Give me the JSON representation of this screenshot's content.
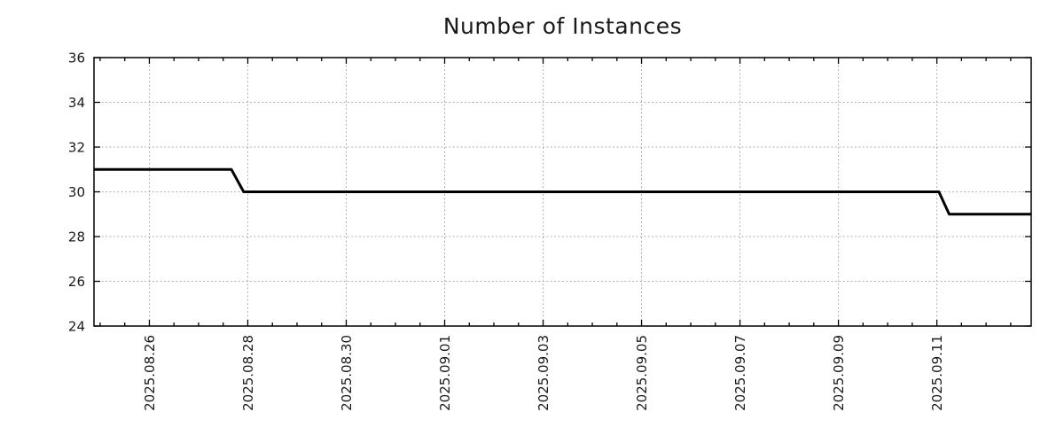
{
  "page": {
    "background": "#ffffff"
  },
  "chart_data": {
    "type": "line",
    "title": "Number of Instances",
    "x_axis": {
      "kind": "datetime",
      "min": "2025-08-24 21:00",
      "max": "2025-09-12 22:00",
      "major_ticks": [
        {
          "date": "2025-08-26",
          "label": "2025.08.26"
        },
        {
          "date": "2025-08-28",
          "label": "2025.08.28"
        },
        {
          "date": "2025-08-30",
          "label": "2025.08.30"
        },
        {
          "date": "2025-09-01",
          "label": "2025.09.01"
        },
        {
          "date": "2025-09-03",
          "label": "2025.09.03"
        },
        {
          "date": "2025-09-05",
          "label": "2025.09.05"
        },
        {
          "date": "2025-09-07",
          "label": "2025.09.07"
        },
        {
          "date": "2025-09-09",
          "label": "2025.09.09"
        },
        {
          "date": "2025-09-11",
          "label": "2025.09.11"
        }
      ],
      "minor_tick_interval_hours": 12,
      "tick_label_rotation_deg": -90
    },
    "y_axis": {
      "min": 24,
      "max": 36,
      "major_ticks": [
        {
          "value": 24,
          "label": "24"
        },
        {
          "value": 26,
          "label": "26"
        },
        {
          "value": 28,
          "label": "28"
        },
        {
          "value": 30,
          "label": "30"
        },
        {
          "value": 32,
          "label": "32"
        },
        {
          "value": 34,
          "label": "34"
        },
        {
          "value": 36,
          "label": "36"
        }
      ]
    },
    "series": [
      {
        "name": "Number of Instances",
        "color": "#000000",
        "line_width": 3,
        "points": [
          {
            "x": "2025-08-24 21:00",
            "y": 31
          },
          {
            "x": "2025-08-27 16:00",
            "y": 31
          },
          {
            "x": "2025-08-27 22:00",
            "y": 30
          },
          {
            "x": "2025-09-11 01:00",
            "y": 30
          },
          {
            "x": "2025-09-11 06:00",
            "y": 29
          },
          {
            "x": "2025-09-12 22:00",
            "y": 29
          }
        ]
      }
    ],
    "grid": {
      "show": true,
      "color": "#aaaaaa",
      "dash": "1.8 2.6"
    },
    "legend": {
      "show": false
    },
    "axis_color": "#000000",
    "text_color": "#1a1a1a"
  }
}
